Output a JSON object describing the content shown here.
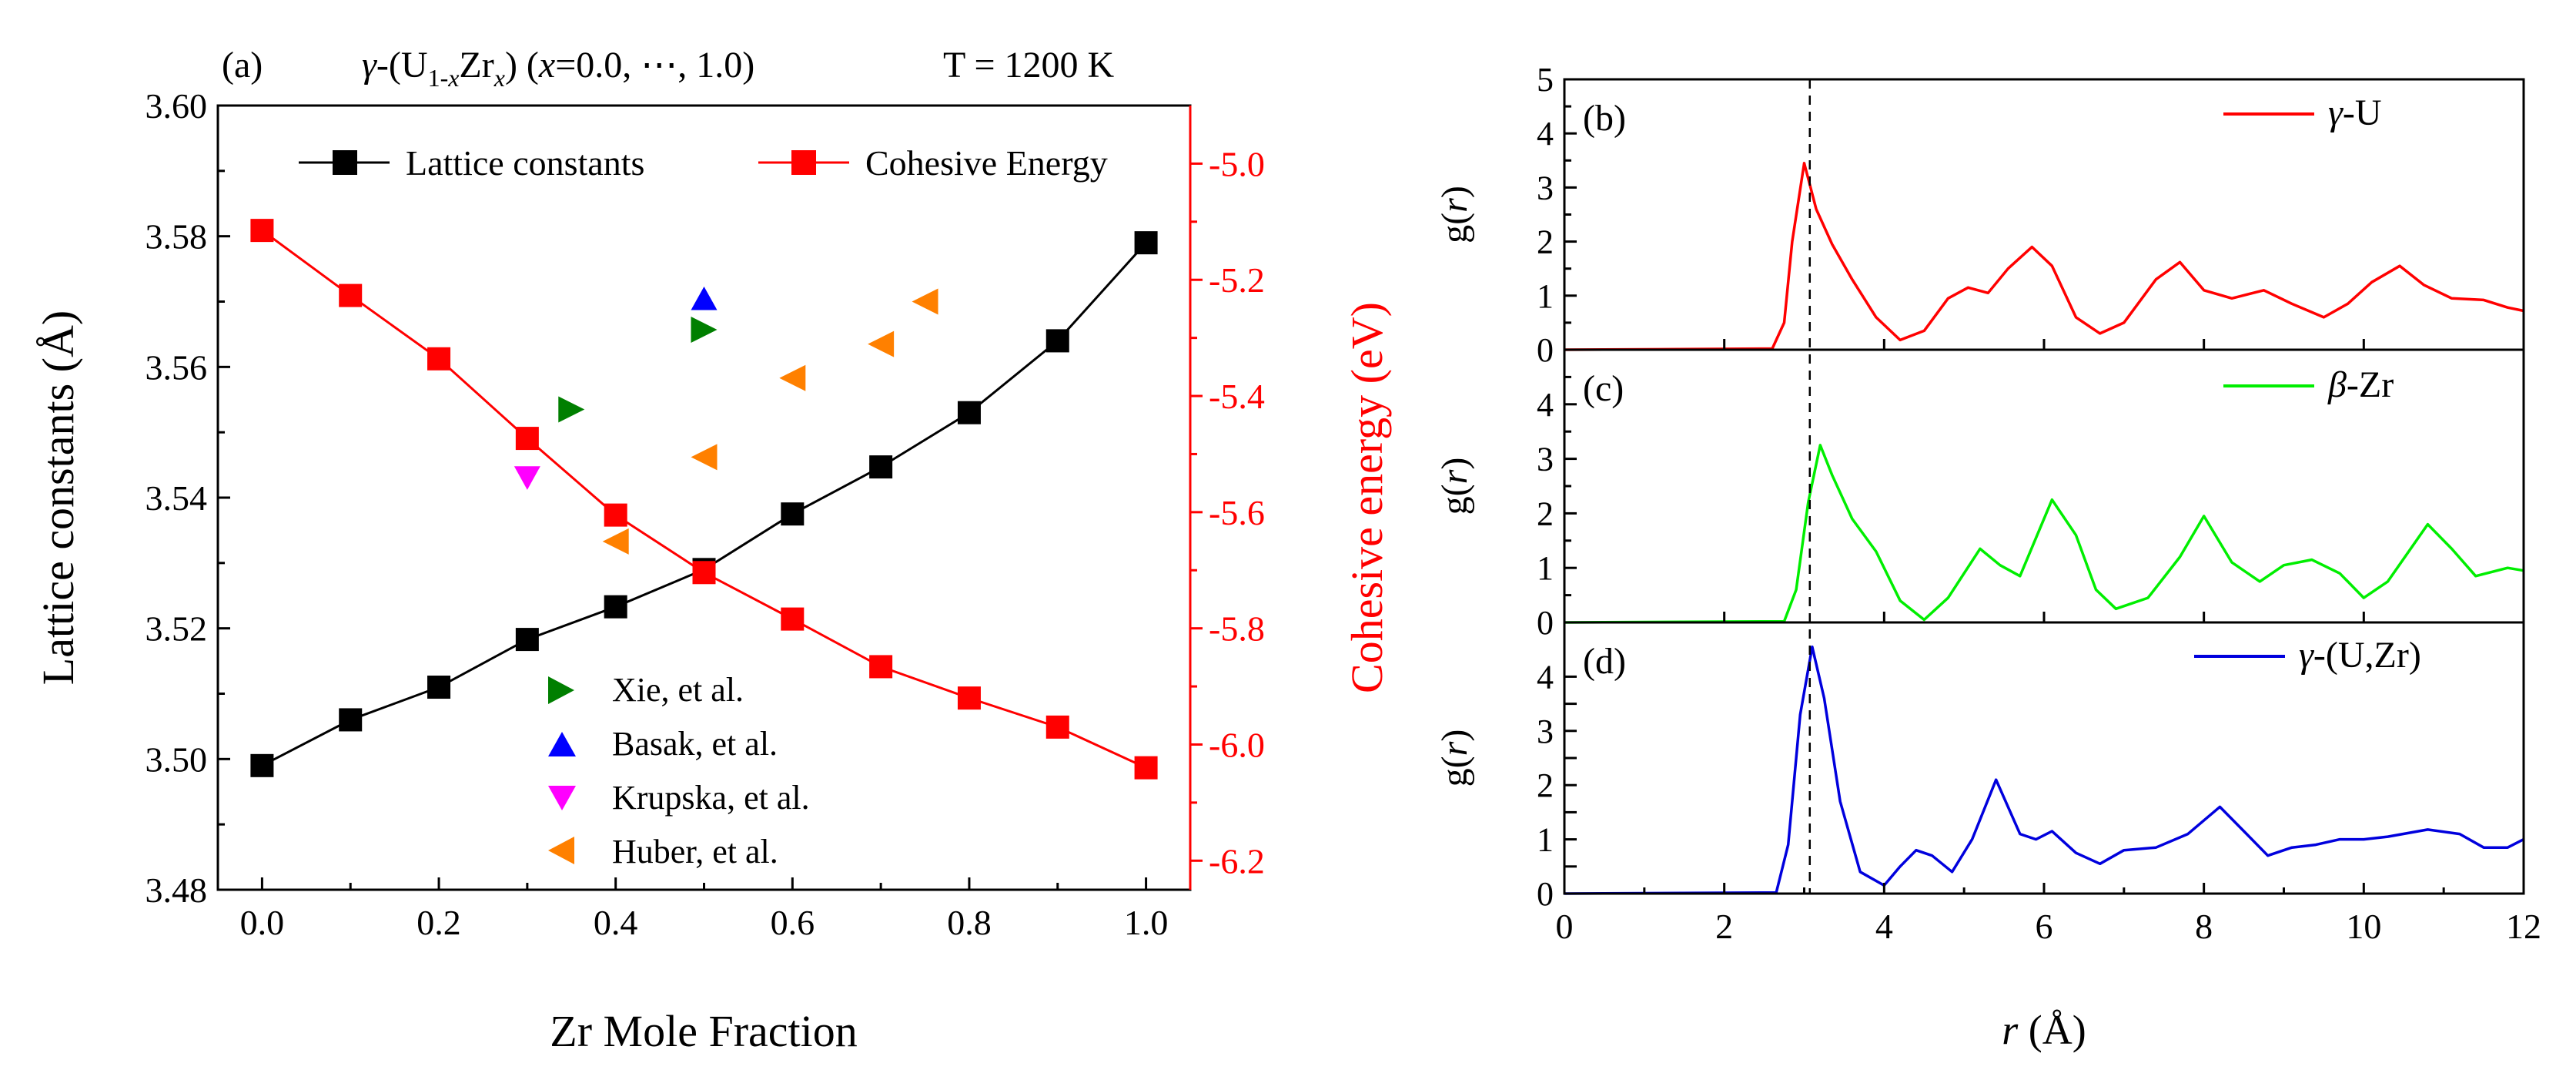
{
  "chart_data": [
    {
      "id": "a",
      "type": "line",
      "panel_label": "(a)",
      "title": "γ-(U1-xZrx) (x=0.0, ⋯, 1.0)",
      "title_parts": {
        "gamma": "γ",
        "open": "-(U",
        "sub1": "1-",
        "x1": "x",
        "zr": "Zr",
        "x2": "x",
        "close": ") (",
        "x3": "x",
        "rest": "=0.0, ⋯, 1.0)"
      },
      "temperature": "T = 1200 K",
      "xlabel": "Zr Mole Fraction",
      "ylabel": "Lattice constants (Å)",
      "y2label": "Cohesive energy (eV)",
      "xlim": [
        -0.05,
        1.05
      ],
      "ylim": [
        3.48,
        3.6
      ],
      "y2lim": [
        -6.25,
        -4.9
      ],
      "x_ticks": [
        "0.0",
        "0.2",
        "0.4",
        "0.6",
        "0.8",
        "1.0"
      ],
      "y_ticks": [
        "3.48",
        "3.50",
        "3.52",
        "3.54",
        "3.56",
        "3.58",
        "3.60"
      ],
      "y2_ticks": [
        "-6.2",
        "-6.0",
        "-5.8",
        "-5.6",
        "-5.4",
        "-5.2",
        "-5.0"
      ],
      "x": [
        0.0,
        0.1,
        0.2,
        0.3,
        0.4,
        0.5,
        0.6,
        0.7,
        0.8,
        0.9,
        1.0
      ],
      "series": [
        {
          "name": "Lattice constants",
          "axis": "left",
          "color": "#000000",
          "values": [
            3.499,
            3.506,
            3.511,
            3.5183,
            3.5233,
            3.529,
            3.5375,
            3.5447,
            3.553,
            3.564,
            3.579
          ]
        },
        {
          "name": "Cohesive Energy",
          "axis": "right",
          "color": "#ff0000",
          "values": [
            -5.115,
            -5.227,
            -5.336,
            -5.473,
            -5.605,
            -5.704,
            -5.784,
            -5.866,
            -5.92,
            -5.97,
            -6.04
          ]
        }
      ],
      "references": [
        {
          "name": "Xie, et al.",
          "marker": "triangle-right",
          "color": "#007f00",
          "points": [
            [
              0.35,
              3.5535
            ],
            [
              0.5,
              3.5657
            ]
          ]
        },
        {
          "name": "Basak, et al.",
          "marker": "triangle-up",
          "color": "#0000ff",
          "points": [
            [
              0.5,
              3.5705
            ]
          ]
        },
        {
          "name": "Krupska, et al.",
          "marker": "triangle-down",
          "color": "#ff00ff",
          "points": [
            [
              0.3,
              3.543
            ]
          ]
        },
        {
          "name": "Huber, et al.",
          "marker": "triangle-left",
          "color": "#ff8000",
          "points": [
            [
              0.4,
              3.5333
            ],
            [
              0.5,
              3.5462
            ],
            [
              0.6,
              3.5583
            ],
            [
              0.7,
              3.5635
            ],
            [
              0.75,
              3.57
            ]
          ]
        }
      ]
    },
    {
      "id": "b",
      "type": "line",
      "panel_label": "(b)",
      "legend_parts": {
        "sym": "γ",
        "text": "-U"
      },
      "color": "#ff0000",
      "xlim": [
        0,
        12
      ],
      "ylim": [
        0,
        5
      ],
      "y_ticks": [
        "0",
        "1",
        "2",
        "3",
        "4",
        "5"
      ],
      "ylabel": "g(r)",
      "x": [
        0,
        2.6,
        2.75,
        2.85,
        3.0,
        3.15,
        3.35,
        3.6,
        3.9,
        4.2,
        4.5,
        4.8,
        5.05,
        5.3,
        5.55,
        5.85,
        6.1,
        6.4,
        6.7,
        7.0,
        7.4,
        7.7,
        8.0,
        8.35,
        8.75,
        9.1,
        9.5,
        9.8,
        10.1,
        10.45,
        10.75,
        11.1,
        11.5,
        11.8,
        12.0
      ],
      "y": [
        0,
        0.02,
        0.5,
        2.0,
        3.45,
        2.6,
        1.95,
        1.3,
        0.6,
        0.18,
        0.35,
        0.95,
        1.15,
        1.05,
        1.5,
        1.9,
        1.55,
        0.6,
        0.3,
        0.5,
        1.3,
        1.62,
        1.1,
        0.95,
        1.1,
        0.85,
        0.6,
        0.85,
        1.25,
        1.55,
        1.2,
        0.95,
        0.92,
        0.78,
        0.72
      ]
    },
    {
      "id": "c",
      "type": "line",
      "panel_label": "(c)",
      "legend_parts": {
        "sym": "β",
        "text": "-Zr"
      },
      "color": "#00ee00",
      "xlim": [
        0,
        12
      ],
      "ylim": [
        0,
        5
      ],
      "y_ticks": [
        "0",
        "1",
        "2",
        "3",
        "4"
      ],
      "ylabel": "g(r)",
      "x": [
        0,
        2.75,
        2.9,
        3.05,
        3.2,
        3.35,
        3.6,
        3.9,
        4.2,
        4.5,
        4.8,
        5.2,
        5.45,
        5.7,
        6.1,
        6.4,
        6.65,
        6.9,
        7.3,
        7.7,
        8.0,
        8.35,
        8.7,
        9.0,
        9.35,
        9.7,
        10.0,
        10.3,
        10.8,
        11.1,
        11.4,
        11.8,
        12.0
      ],
      "y": [
        0,
        0.02,
        0.6,
        2.2,
        3.25,
        2.7,
        1.9,
        1.3,
        0.4,
        0.05,
        0.45,
        1.35,
        1.05,
        0.85,
        2.25,
        1.6,
        0.6,
        0.25,
        0.45,
        1.2,
        1.95,
        1.1,
        0.75,
        1.05,
        1.15,
        0.9,
        0.45,
        0.75,
        1.8,
        1.35,
        0.85,
        1.0,
        0.95
      ]
    },
    {
      "id": "d",
      "type": "line",
      "panel_label": "(d)",
      "legend_parts": {
        "sym": "γ",
        "text": "-(U,Zr)"
      },
      "color": "#0000dd",
      "xlim": [
        0,
        12
      ],
      "ylim": [
        0,
        5
      ],
      "y_ticks": [
        "0",
        "0.5",
        "1",
        "1.5",
        "2",
        "2.5",
        "3",
        "3.5",
        "4"
      ],
      "y_tick_labels": [
        "0",
        "",
        "1",
        "",
        "2",
        "",
        "3",
        "",
        "4"
      ],
      "ylabel": "g(r)",
      "x": [
        0,
        2.65,
        2.8,
        2.95,
        3.1,
        3.25,
        3.45,
        3.7,
        4.0,
        4.2,
        4.4,
        4.6,
        4.85,
        5.1,
        5.4,
        5.7,
        5.9,
        6.1,
        6.4,
        6.7,
        7.0,
        7.4,
        7.8,
        8.2,
        8.5,
        8.8,
        9.1,
        9.4,
        9.7,
        10.0,
        10.3,
        10.8,
        11.2,
        11.5,
        11.8,
        12.0
      ],
      "y": [
        0,
        0.02,
        0.9,
        3.3,
        4.55,
        3.6,
        1.7,
        0.4,
        0.15,
        0.5,
        0.8,
        0.7,
        0.4,
        1.0,
        2.1,
        1.1,
        1.0,
        1.15,
        0.75,
        0.55,
        0.8,
        0.85,
        1.1,
        1.6,
        1.15,
        0.7,
        0.85,
        0.9,
        1.0,
        1.0,
        1.05,
        1.18,
        1.1,
        0.85,
        0.85,
        1.0
      ]
    }
  ],
  "shared": {
    "r_ticks": [
      "0",
      "2",
      "4",
      "6",
      "8",
      "10",
      "12"
    ],
    "r_label_italic": "r",
    "r_label_unit": " (Å)",
    "g_label_pre": "g(",
    "g_label_r": "r",
    "g_label_post": ")",
    "dashed_line_r": 3.07
  }
}
